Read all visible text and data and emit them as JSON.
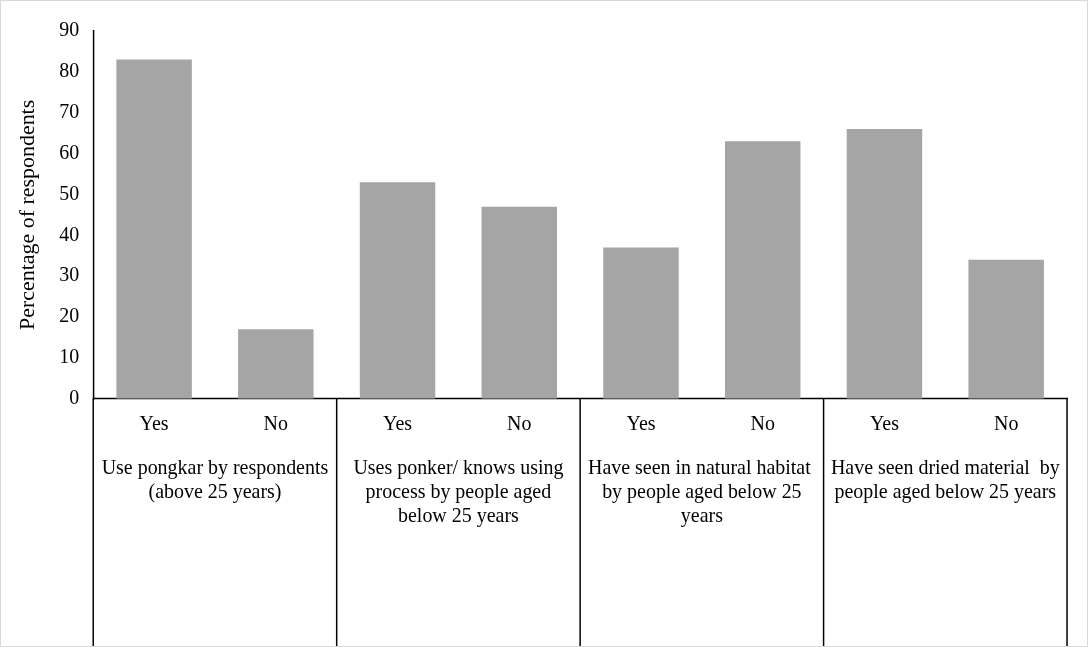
{
  "chart_data": {
    "type": "bar",
    "ylabel": "Percentage of respondents",
    "categories": [
      "Yes",
      "No",
      "Yes",
      "No",
      "Yes",
      "No",
      "Yes",
      "No"
    ],
    "values": [
      83,
      17,
      53,
      47,
      37,
      63,
      66,
      34
    ],
    "color": "#a5a5a5",
    "ylim": [
      0,
      90
    ],
    "yticks": [
      0,
      10,
      20,
      30,
      40,
      50,
      60,
      70,
      80,
      90
    ],
    "grid": false,
    "legend": false,
    "annotations": [
      "Use pongkar by respondents (above 25 years)",
      "Uses ponker/ knows using process by people aged below 25 years",
      "Have seen in natural habitat  by people aged below 25 years",
      "Have seen dried material  by people aged below 25 years"
    ]
  }
}
